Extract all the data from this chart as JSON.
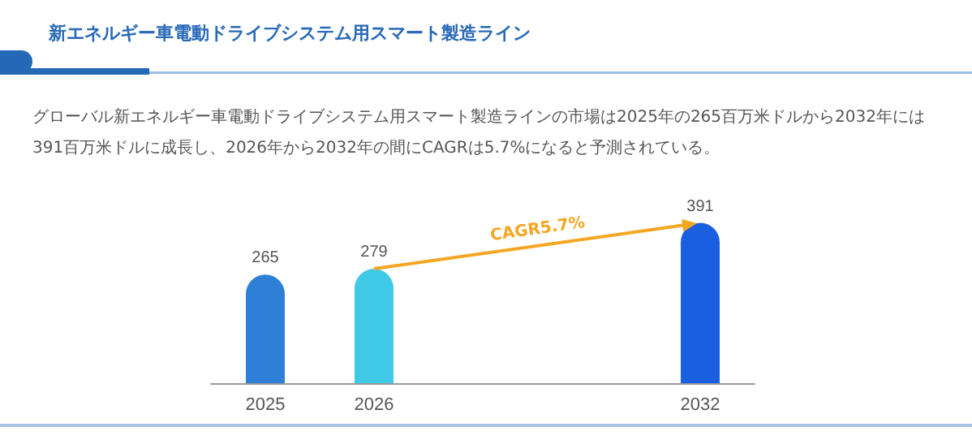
{
  "chart_data": {
    "type": "bar",
    "title": "新エネルギー車電動ドライブシステム用スマート製造ライン",
    "subtitle": "グローバル新エネルギー車電動ドライブシステム用スマート製造ラインの市場は2025年の265百万米ドルから2032年には391百万米ドルに成長し、2026年から2032年の間にCAGRは5.7%になると予測されている。",
    "categories": [
      "2025",
      "2026",
      null,
      null,
      "2032"
    ],
    "values": [
      265,
      279,
      null,
      null,
      391
    ],
    "colors": [
      "#2e80d6",
      "#40c9e6",
      null,
      null,
      "#1a5fe0"
    ],
    "data_labels": true,
    "tick_labels": "x",
    "annotations": [
      "CAGR5.7%"
    ]
  }
}
